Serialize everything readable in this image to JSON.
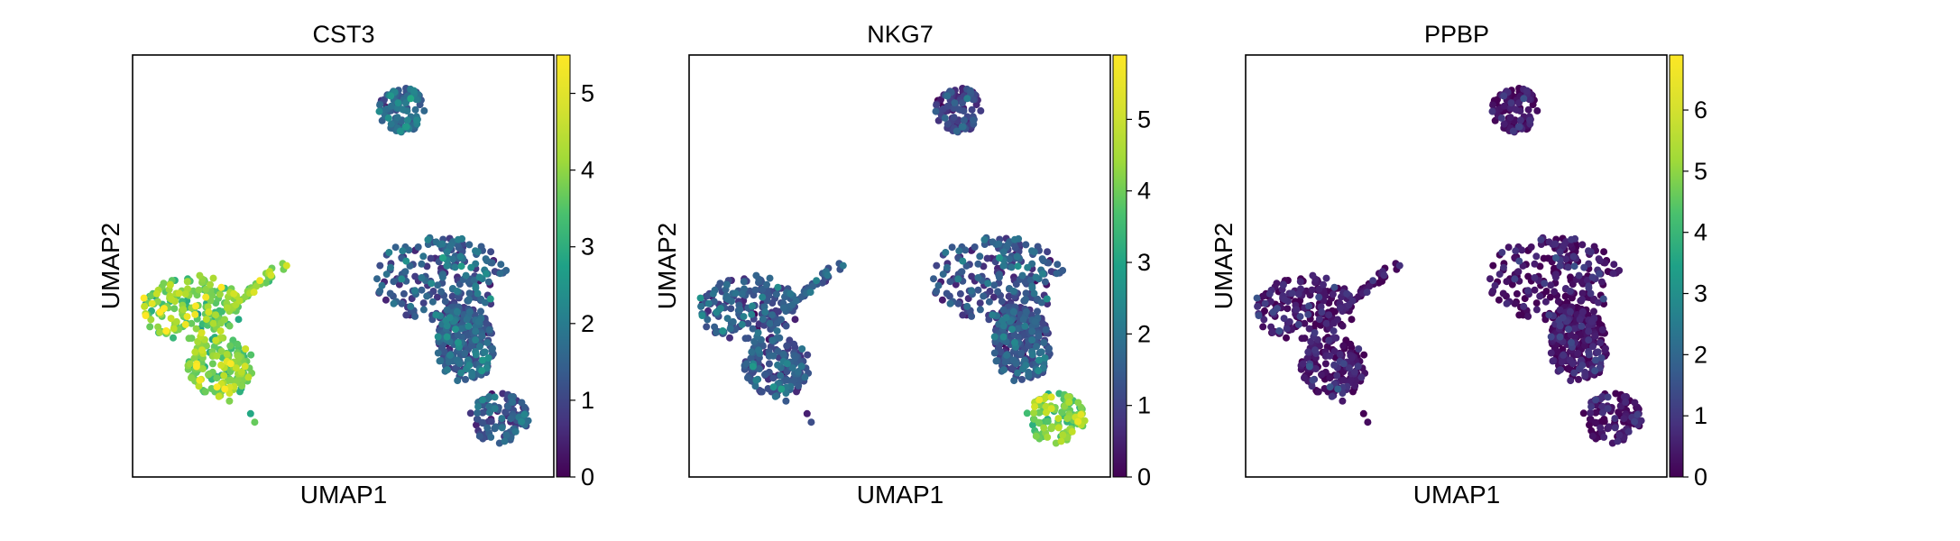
{
  "chart_data": [
    {
      "type": "scatter",
      "title": "CST3",
      "xlabel": "UMAP1",
      "ylabel": "UMAP2",
      "colormap": "viridis",
      "colorbar": {
        "min": 0,
        "max": 5.5,
        "ticks": [
          0,
          1,
          2,
          3,
          4,
          5
        ]
      },
      "grid": false,
      "clusters": [
        {
          "name": "top",
          "expression_mean": 1.8
        },
        {
          "name": "right",
          "expression_mean": 1.5
        },
        {
          "name": "left",
          "expression_mean": 4.3
        },
        {
          "name": "left-tail",
          "expression_mean": 4.6
        },
        {
          "name": "bottom-right",
          "expression_mean": 1.3
        }
      ]
    },
    {
      "type": "scatter",
      "title": "NKG7",
      "xlabel": "UMAP1",
      "ylabel": "UMAP2",
      "colormap": "viridis",
      "colorbar": {
        "min": 0,
        "max": 5.9,
        "ticks": [
          0,
          1,
          2,
          3,
          4,
          5
        ]
      },
      "grid": false,
      "clusters": [
        {
          "name": "top",
          "expression_mean": 1.0
        },
        {
          "name": "right",
          "expression_mean": 1.4
        },
        {
          "name": "left",
          "expression_mean": 1.5
        },
        {
          "name": "left-tail",
          "expression_mean": 1.8
        },
        {
          "name": "bottom-right",
          "expression_mean": 4.5
        }
      ]
    },
    {
      "type": "scatter",
      "title": "PPBP",
      "xlabel": "UMAP1",
      "ylabel": "UMAP2",
      "colormap": "viridis",
      "colorbar": {
        "min": 0,
        "max": 6.9,
        "ticks": [
          0,
          1,
          2,
          3,
          4,
          5,
          6
        ]
      },
      "grid": false,
      "clusters": [
        {
          "name": "top",
          "expression_mean": 0.2
        },
        {
          "name": "right",
          "expression_mean": 0.2
        },
        {
          "name": "left",
          "expression_mean": 0.3
        },
        {
          "name": "left-tail",
          "expression_mean": 0.4
        },
        {
          "name": "bottom-right",
          "expression_mean": 0.1
        }
      ]
    }
  ]
}
